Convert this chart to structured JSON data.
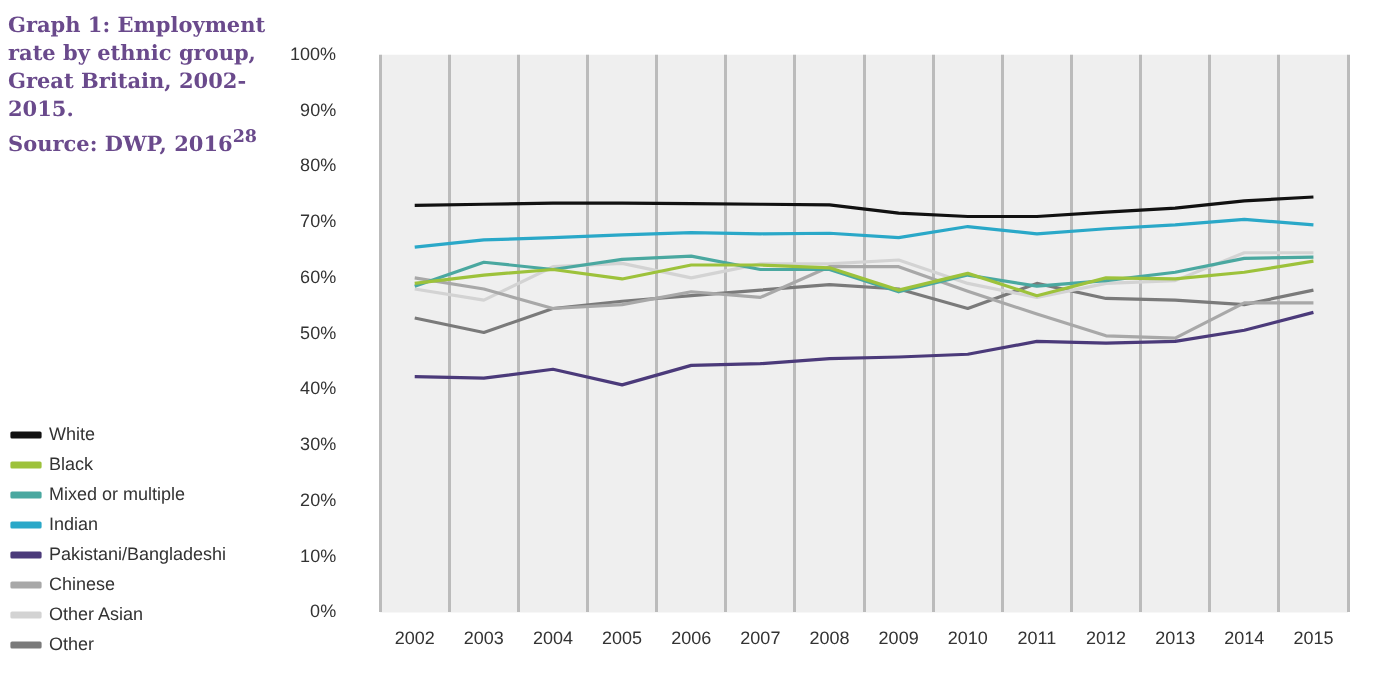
{
  "chart_data": {
    "type": "line",
    "title": "Graph 1: Employment rate by ethnic group, Great Britain, 2002-2015.",
    "annotations": [
      "Source: DWP, 2016$^{28}$"
    ],
    "categories": [
      "2002",
      "2003",
      "2004",
      "2005",
      "2006",
      "2007",
      "2008",
      "2009",
      "2010",
      "2011",
      "2012",
      "2013",
      "2014",
      "2015"
    ],
    "series": [
      {
        "name": "White",
        "color": "#111111",
        "values": [
          73,
          73.2,
          73.4,
          73.4,
          73.3,
          73.2,
          73.1,
          71.6,
          71,
          71,
          71.8,
          72.5,
          73.8,
          74.5
        ]
      },
      {
        "name": "Black",
        "color": "#9dc23b",
        "values": [
          59,
          60.5,
          61.5,
          59.8,
          62.3,
          62.3,
          61.8,
          57.8,
          60.8,
          56.8,
          60,
          59.8,
          61,
          63
        ]
      },
      {
        "name": "Mixed or multiple",
        "color": "#4aa8a0",
        "values": [
          58.5,
          62.8,
          61.5,
          63.3,
          63.9,
          61.5,
          61.5,
          57.5,
          60.5,
          58.5,
          59.5,
          61,
          63.5,
          63.7
        ]
      },
      {
        "name": "Indian",
        "color": "#2aa8c8",
        "values": [
          65.5,
          66.8,
          67.2,
          67.7,
          68.1,
          67.9,
          68,
          67.2,
          69.2,
          67.9,
          68.8,
          69.5,
          70.5,
          69.5
        ]
      },
      {
        "name": "Pakistani/Bangladeshi",
        "color": "#4b3a7a",
        "values": [
          42.3,
          42,
          43.6,
          40.8,
          44.3,
          44.6,
          45.5,
          45.8,
          46.3,
          48.6,
          48.3,
          48.6,
          50.6,
          53.8
        ]
      },
      {
        "name": "Chinese",
        "color": "#a8a8a8",
        "values": [
          60,
          58,
          54.5,
          55.2,
          57.5,
          56.5,
          62,
          62,
          57.6,
          53.5,
          49.6,
          49.2,
          55.5,
          55.5
        ]
      },
      {
        "name": "Other Asian",
        "color": "#d3d3d3",
        "values": [
          58,
          56,
          62,
          62.6,
          60,
          62.5,
          62.5,
          63.2,
          59,
          56.5,
          59,
          59.5,
          64.5,
          64.5
        ]
      },
      {
        "name": "Other",
        "color": "#7a7a7a",
        "values": [
          52.8,
          50.2,
          54.5,
          55.8,
          56.8,
          57.8,
          58.8,
          58,
          54.5,
          59,
          56.3,
          56,
          55.2,
          57.8
        ]
      }
    ],
    "ylim": [
      0,
      100
    ],
    "yticks": [
      {
        "value": 0,
        "label": "0%"
      },
      {
        "value": 10,
        "label": "10%"
      },
      {
        "value": 20,
        "label": "20%"
      },
      {
        "value": 30,
        "label": "30%"
      },
      {
        "value": 40,
        "label": "40%"
      },
      {
        "value": 50,
        "label": "50%"
      },
      {
        "value": 60,
        "label": "60%"
      },
      {
        "value": 70,
        "label": "70%"
      },
      {
        "value": 80,
        "label": "80%"
      },
      {
        "value": 90,
        "label": "90%"
      },
      {
        "value": 100,
        "label": "100%"
      }
    ],
    "grid": "x",
    "legend": "left",
    "marker": "none",
    "line_style": "solid"
  }
}
